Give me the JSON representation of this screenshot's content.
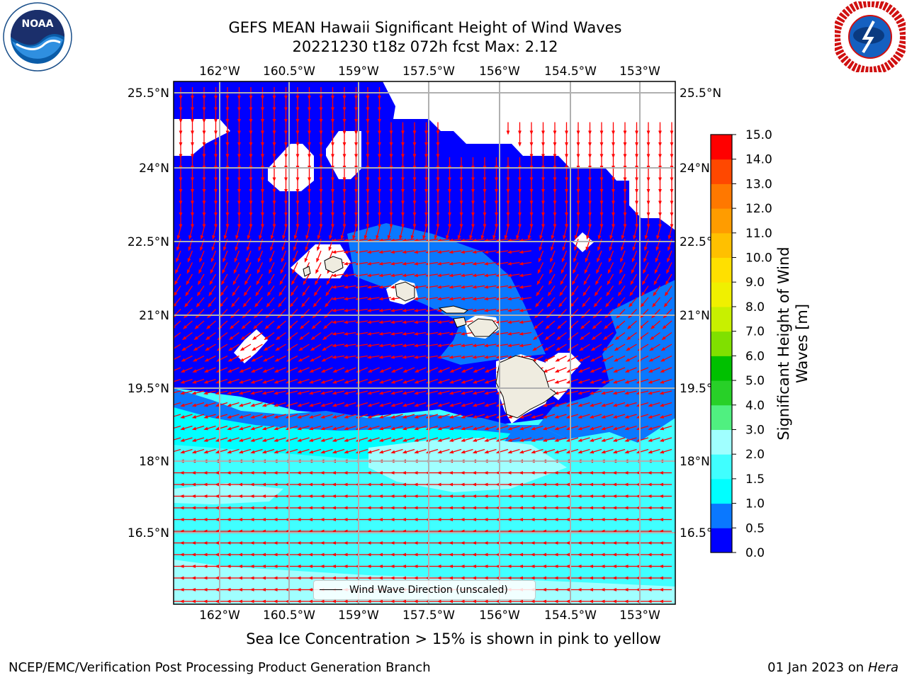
{
  "title": {
    "line1": "GEFS MEAN Hawaii Significant Height of Wind Waves",
    "line2": "20221230 t18z 072h fcst   Max: 2.12"
  },
  "map": {
    "lon_ticks": [
      "162°W",
      "160.5°W",
      "159°W",
      "157.5°W",
      "156°W",
      "154.5°W",
      "153°W"
    ],
    "lat_ticks": [
      "25.5°N",
      "24°N",
      "22.5°N",
      "21°N",
      "19.5°N",
      "18°N",
      "16.5°N"
    ],
    "legend_label": "Wind Wave Direction (unscaled)",
    "land_color": "#efece0",
    "arrow_color": "#ff0000"
  },
  "colorbar": {
    "label_line1": "Significant Height of Wind",
    "label_line2": "Waves [m]",
    "ticks": [
      "0.0",
      "0.5",
      "1.0",
      "1.5",
      "2.0",
      "3.0",
      "4.0",
      "5.0",
      "6.0",
      "7.0",
      "8.0",
      "9.0",
      "10.0",
      "11.0",
      "12.0",
      "13.0",
      "14.0",
      "15.0"
    ],
    "colors": [
      "#0000ff",
      "#0a78ff",
      "#00ffff",
      "#40ffff",
      "#a0ffff",
      "#50f080",
      "#28d028",
      "#00c000",
      "#80e000",
      "#c8f000",
      "#f0f000",
      "#ffe000",
      "#ffc000",
      "#ff9c00",
      "#ff7800",
      "#ff4800",
      "#ff0000"
    ]
  },
  "footer": {
    "note": "Sea Ice Concentration > 15% is shown in pink to yellow",
    "org": "NCEP/EMC/Verification Post Processing Product Generation Branch",
    "date": "01 Jan 2023 on ",
    "host": "Hera"
  },
  "logos": {
    "noaa_icon": "noaa-logo-icon",
    "nws_icon": "nws-logo-icon"
  }
}
